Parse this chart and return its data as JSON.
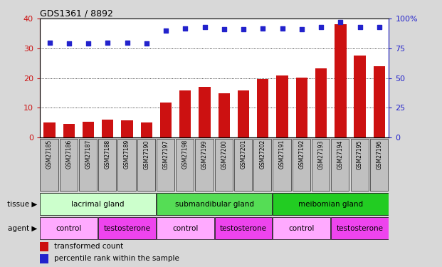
{
  "title": "GDS1361 / 8892",
  "samples": [
    "GSM27185",
    "GSM27186",
    "GSM27187",
    "GSM27188",
    "GSM27189",
    "GSM27190",
    "GSM27197",
    "GSM27198",
    "GSM27199",
    "GSM27200",
    "GSM27201",
    "GSM27202",
    "GSM27191",
    "GSM27192",
    "GSM27193",
    "GSM27194",
    "GSM27195",
    "GSM27196"
  ],
  "bar_values": [
    5.1,
    4.7,
    5.2,
    6.1,
    5.7,
    5.1,
    11.8,
    15.8,
    17.0,
    14.9,
    15.9,
    19.6,
    20.8,
    20.1,
    23.4,
    38.2,
    27.6,
    23.9
  ],
  "dot_values": [
    80,
    79,
    79,
    80,
    80,
    79,
    90,
    92,
    93,
    91,
    91,
    92,
    92,
    91,
    93,
    97,
    93,
    93
  ],
  "bar_color": "#cc1111",
  "dot_color": "#2222cc",
  "ylim_left": [
    0,
    40
  ],
  "ylim_right": [
    0,
    100
  ],
  "yticks_left": [
    0,
    10,
    20,
    30,
    40
  ],
  "yticks_right": [
    0,
    25,
    50,
    75,
    100
  ],
  "ytick_labels_right": [
    "0",
    "25",
    "50",
    "75",
    "100%"
  ],
  "grid_values": [
    10,
    20,
    30
  ],
  "tissue_groups": [
    {
      "label": "lacrimal gland",
      "start": 0,
      "end": 6,
      "color": "#ccffcc"
    },
    {
      "label": "submandibular gland",
      "start": 6,
      "end": 12,
      "color": "#55dd55"
    },
    {
      "label": "meibomian gland",
      "start": 12,
      "end": 18,
      "color": "#22cc22"
    }
  ],
  "agent_groups": [
    {
      "label": "control",
      "start": 0,
      "end": 3,
      "color": "#ffaaff"
    },
    {
      "label": "testosterone",
      "start": 3,
      "end": 6,
      "color": "#ee44ee"
    },
    {
      "label": "control",
      "start": 6,
      "end": 9,
      "color": "#ffaaff"
    },
    {
      "label": "testosterone",
      "start": 9,
      "end": 12,
      "color": "#ee44ee"
    },
    {
      "label": "control",
      "start": 12,
      "end": 15,
      "color": "#ffaaff"
    },
    {
      "label": "testosterone",
      "start": 15,
      "end": 18,
      "color": "#ee44ee"
    }
  ],
  "legend_bar_label": "transformed count",
  "legend_dot_label": "percentile rank within the sample",
  "tissue_label": "tissue",
  "agent_label": "agent",
  "background_color": "#d8d8d8",
  "plot_bg_color": "#ffffff",
  "label_box_color": "#c0c0c0"
}
